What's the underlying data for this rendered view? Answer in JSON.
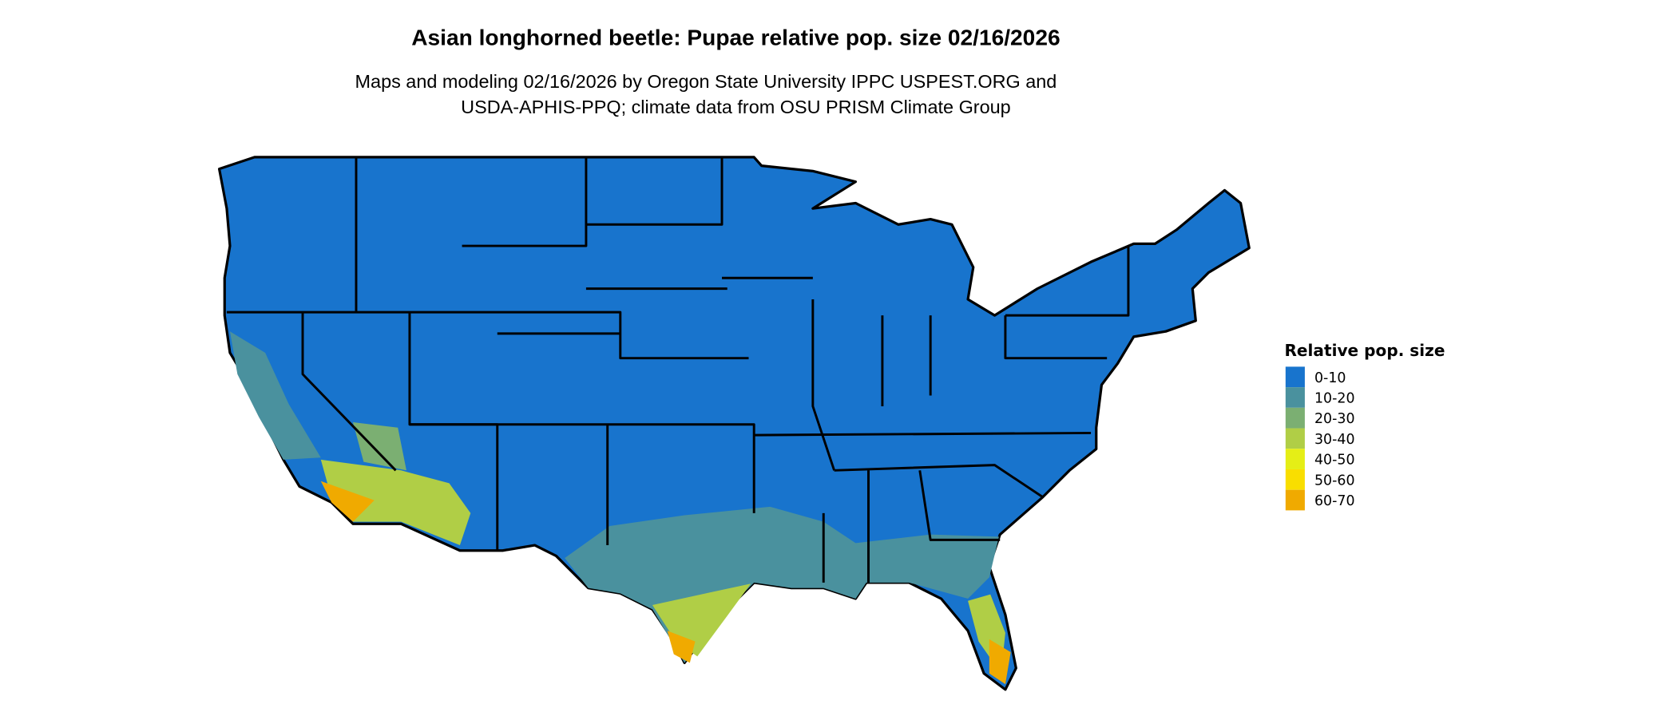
{
  "title": "Asian longhorned beetle: Pupae relative pop. size 02/16/2026",
  "subtitle_lines": [
    "Maps and modeling 02/16/2026 by Oregon State University IPPC USPEST.ORG and",
    "USDA-APHIS-PPQ; climate data from OSU PRISM Climate Group"
  ],
  "legend": {
    "title": "Relative pop. size",
    "items": [
      {
        "label": "0-10",
        "color": "#1874CD"
      },
      {
        "label": "10-20",
        "color": "#4A919E"
      },
      {
        "label": "20-30",
        "color": "#7BAF72"
      },
      {
        "label": "30-40",
        "color": "#B0CE46"
      },
      {
        "label": "40-50",
        "color": "#E5EE16"
      },
      {
        "label": "50-60",
        "color": "#F9DE00"
      },
      {
        "label": "60-70",
        "color": "#F0AA00"
      }
    ]
  },
  "map": {
    "region": "Contiguous United States",
    "boundaries": "state borders"
  }
}
